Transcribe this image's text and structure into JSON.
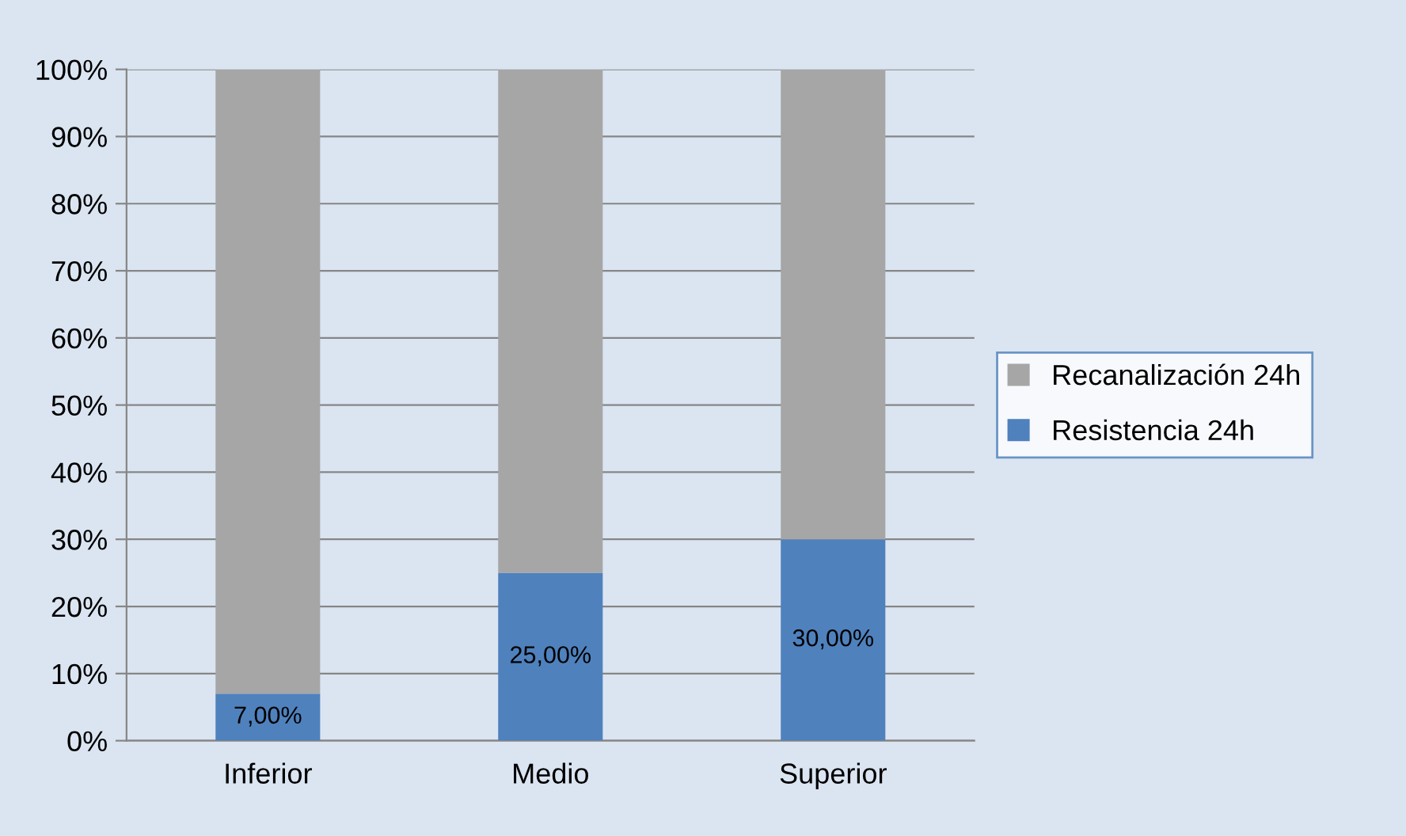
{
  "chart_data": {
    "type": "bar",
    "stacked": true,
    "categories": [
      "Inferior",
      "Medio",
      "Superior"
    ],
    "series": [
      {
        "name": "Resistencia 24h",
        "color": "#4f81bd",
        "values": [
          7,
          25,
          30
        ],
        "value_labels": [
          "7,00%",
          "25,00%",
          "30,00%"
        ]
      },
      {
        "name": "Recanalización 24h",
        "color": "#a6a6a6",
        "values": [
          93,
          75,
          70
        ]
      }
    ],
    "ylim": [
      0,
      100
    ],
    "yticks": [
      {
        "value": 0,
        "label": "0%"
      },
      {
        "value": 10,
        "label": "10%"
      },
      {
        "value": 20,
        "label": "20%"
      },
      {
        "value": 30,
        "label": "30%"
      },
      {
        "value": 40,
        "label": "40%"
      },
      {
        "value": 50,
        "label": "50%"
      },
      {
        "value": 60,
        "label": "60%"
      },
      {
        "value": 70,
        "label": "70%"
      },
      {
        "value": 80,
        "label": "80%"
      },
      {
        "value": 90,
        "label": "90%"
      },
      {
        "value": 100,
        "label": "100%"
      }
    ],
    "grid": "y",
    "legend": "right"
  }
}
